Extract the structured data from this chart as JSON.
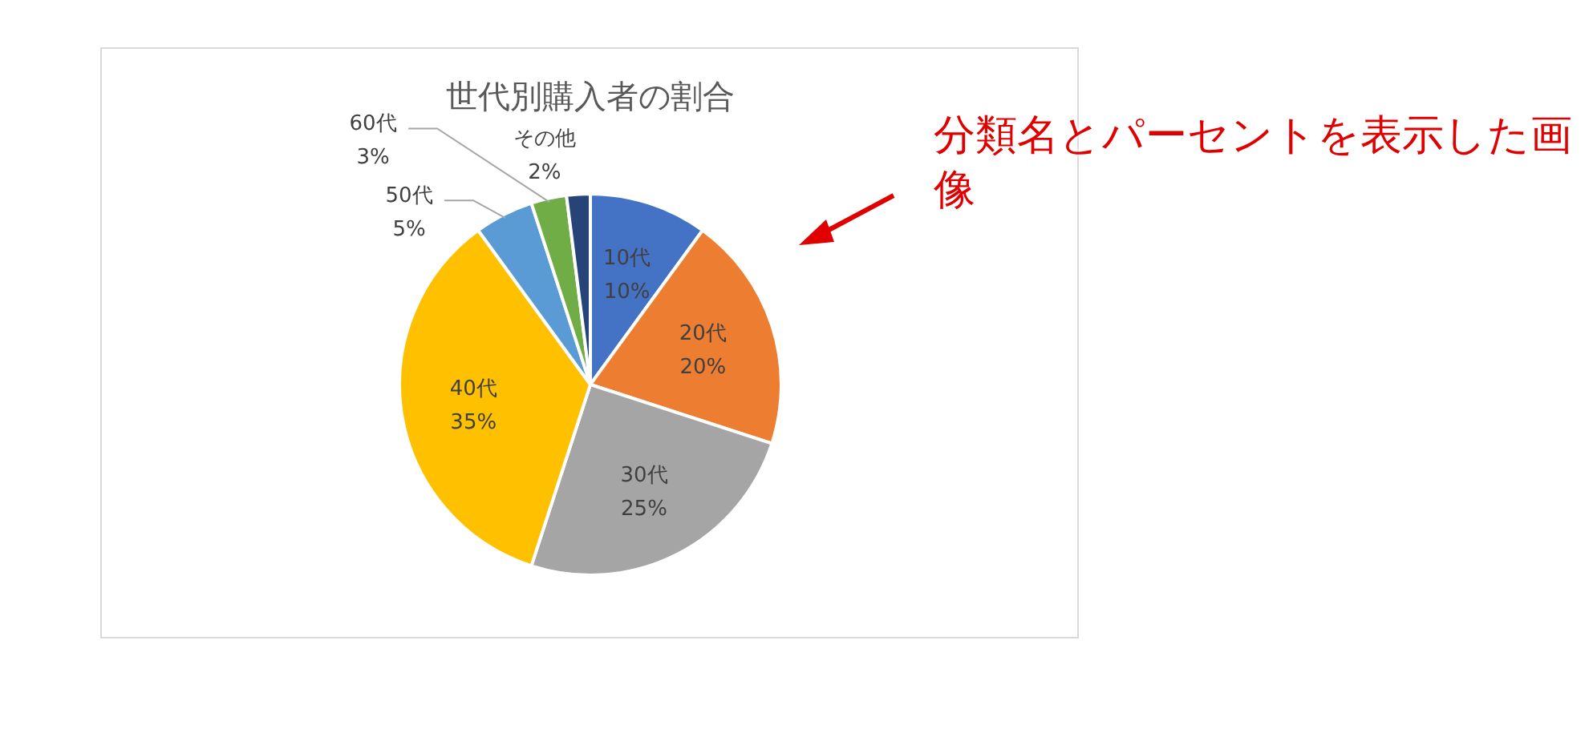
{
  "chart_data": {
    "type": "pie",
    "title": "世代別購入者の割合",
    "categories": [
      "10代",
      "20代",
      "30代",
      "40代",
      "50代",
      "60代",
      "その他"
    ],
    "values": [
      10,
      20,
      25,
      35,
      5,
      3,
      2
    ],
    "value_labels": [
      "10%",
      "20%",
      "25%",
      "35%",
      "5%",
      "3%",
      "2%"
    ],
    "colors": [
      "#4472c4",
      "#ed7d31",
      "#a5a5a5",
      "#ffc000",
      "#5b9bd5",
      "#70ad47",
      "#264478"
    ],
    "annotations": [
      "分類名とパーセントを表示した画像"
    ]
  }
}
